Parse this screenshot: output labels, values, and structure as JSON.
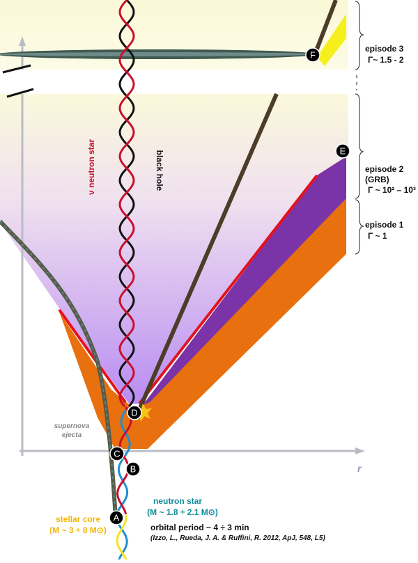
{
  "episodes": [
    {
      "label": "episode 3",
      "gamma": "Γ~ 1.5 - 2"
    },
    {
      "label": "episode 2",
      "note": "(GRB)",
      "gamma": "Γ ~ 10² – 10³"
    },
    {
      "label": "episode 1",
      "gamma": "Γ ~ 1"
    }
  ],
  "helix_labels": {
    "neutron_star": "ν neutron star",
    "black_hole": "black hole"
  },
  "ejecta": {
    "line1": "supernova",
    "line2": "ejecta"
  },
  "axis_label": "r",
  "nodes": [
    {
      "label": "A"
    },
    {
      "label": "B"
    },
    {
      "label": "C"
    },
    {
      "label": "D"
    },
    {
      "label": "E"
    },
    {
      "label": "F"
    }
  ],
  "neutron_star": {
    "title": "neutron star",
    "mass": "(M ~ 1.8 ÷ 2.1 M⊙)"
  },
  "stellar_core": {
    "title": "stellar core",
    "mass": "(M ~ 3 ÷ 8 M⊙)"
  },
  "orbital_period": "orbital period ~ 4 ÷ 3 min",
  "reference": "(Izzo, L., Rueda, J. A. & Ruffini, R. 2012, ApJ, 548, L5)"
}
